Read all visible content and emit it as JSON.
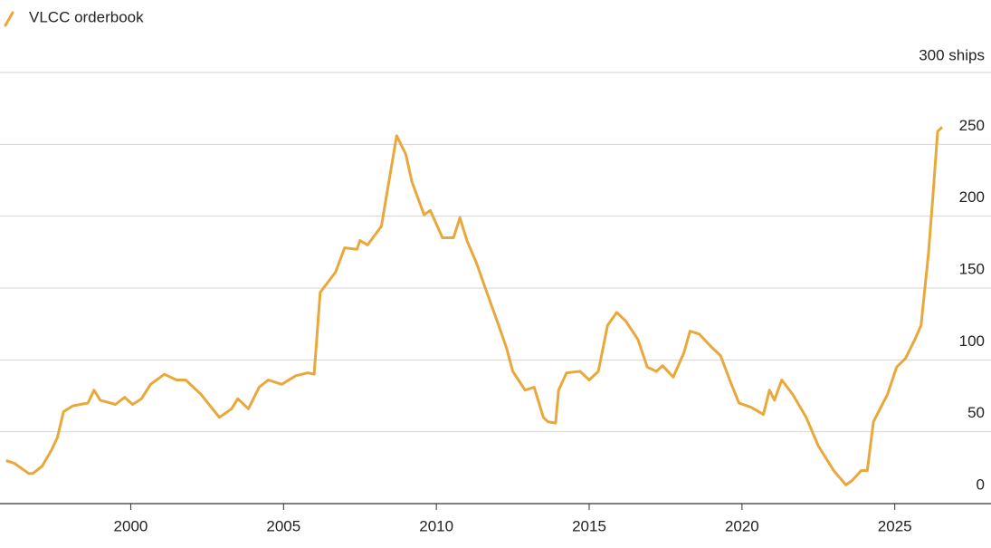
{
  "chart_data": {
    "type": "line",
    "xlim": [
      1995.9,
      2027.2
    ],
    "xticks": [
      2000,
      2005,
      2010,
      2015,
      2020,
      2025
    ],
    "ylim": [
      0,
      300
    ],
    "yticks": [
      0,
      50,
      100,
      150,
      200,
      250,
      {
        "value": 300,
        "label": "300 ships"
      }
    ],
    "grid": true,
    "legend": "top-left",
    "series": [
      {
        "name": "VLCC orderbook",
        "color": "#e9a83a",
        "x": [
          1995.92,
          1996.2,
          1996.66,
          1996.8,
          1997.1,
          1997.4,
          1997.6,
          1997.8,
          1998.1,
          1998.6,
          1998.8,
          1999.0,
          1999.5,
          1999.8,
          2000.06,
          2000.35,
          2000.65,
          2001.1,
          2001.5,
          2001.8,
          2002.3,
          2002.9,
          2003.3,
          2003.5,
          2003.85,
          2004.2,
          2004.5,
          2004.94,
          2005.4,
          2005.8,
          2006.0,
          2006.2,
          2006.7,
          2007.0,
          2007.4,
          2007.5,
          2007.75,
          2008.2,
          2008.4,
          2008.7,
          2009.0,
          2009.2,
          2009.6,
          2009.8,
          2010.2,
          2010.56,
          2010.77,
          2011.0,
          2011.3,
          2011.6,
          2012.04,
          2012.3,
          2012.5,
          2012.9,
          2013.2,
          2013.5,
          2013.65,
          2013.9,
          2014.0,
          2014.26,
          2014.7,
          2015.0,
          2015.3,
          2015.6,
          2015.9,
          2016.2,
          2016.6,
          2016.9,
          2017.2,
          2017.4,
          2017.75,
          2018.1,
          2018.3,
          2018.6,
          2019.0,
          2019.3,
          2019.6,
          2019.9,
          2020.3,
          2020.7,
          2020.9,
          2021.06,
          2021.3,
          2021.66,
          2022.1,
          2022.5,
          2023.0,
          2023.4,
          2023.6,
          2023.9,
          2024.1,
          2024.3,
          2024.76,
          2025.06,
          2025.35,
          2025.65,
          2025.86,
          2026.1,
          2026.24,
          2026.4,
          2026.55
        ],
        "values": [
          30,
          28,
          21,
          21,
          26,
          37,
          46,
          64,
          68,
          70,
          79,
          72,
          69,
          74,
          69,
          73,
          83,
          90,
          86,
          86,
          76,
          60,
          66,
          73,
          66,
          81,
          86,
          83,
          89,
          91,
          90,
          147,
          161,
          178,
          177,
          183,
          180,
          193,
          218,
          256,
          243,
          224,
          201,
          204,
          185,
          185,
          199,
          183,
          168,
          150,
          124,
          108,
          92,
          79,
          81,
          60,
          57,
          56,
          79,
          91,
          92,
          86,
          92,
          124,
          133,
          127,
          114,
          95,
          92,
          96,
          88,
          105,
          120,
          118,
          109,
          103,
          86,
          70,
          67,
          62,
          79,
          72,
          86,
          76,
          60,
          40,
          23,
          13,
          16,
          23,
          23,
          57,
          76,
          95,
          101,
          114,
          124,
          174,
          212,
          259,
          262
        ]
      }
    ]
  }
}
